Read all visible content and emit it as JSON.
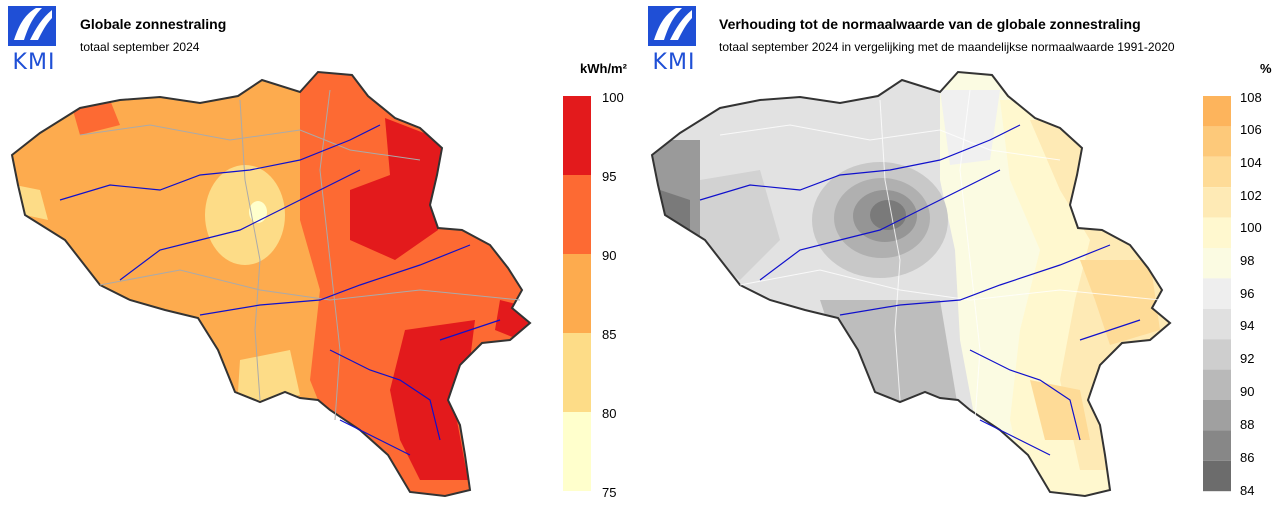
{
  "logo": {
    "text": "KMI",
    "color": "#1f4fd6"
  },
  "left_panel": {
    "title": "Globale zonnestraling",
    "subtitle": "totaal september 2024",
    "legend": {
      "unit": "kWh/m²",
      "ticks": [
        "100",
        "95",
        "90",
        "85",
        "80",
        "75"
      ],
      "colors": [
        "#e31a1c",
        "#fd6a33",
        "#fdab4e",
        "#fddc87",
        "#ffffcc"
      ]
    }
  },
  "right_panel": {
    "title": "Verhouding tot de normaalwaarde van de globale zonnestraling",
    "subtitle": "totaal september 2024 in vergelijking met de maandelijkse normaalwaarde 1991-2020",
    "legend": {
      "unit": "%",
      "ticks": [
        "108",
        "106",
        "104",
        "102",
        "100",
        "98",
        "96",
        "94",
        "92",
        "90",
        "88",
        "86",
        "84"
      ],
      "colors": [
        "#fdb45c",
        "#fdc97a",
        "#fedb97",
        "#feeab5",
        "#fff8cf",
        "#fbfbe2",
        "#eeeeee",
        "#e0e0e0",
        "#cecece",
        "#b9b9b9",
        "#a0a0a0",
        "#878787",
        "#6c6c6c"
      ]
    }
  }
}
